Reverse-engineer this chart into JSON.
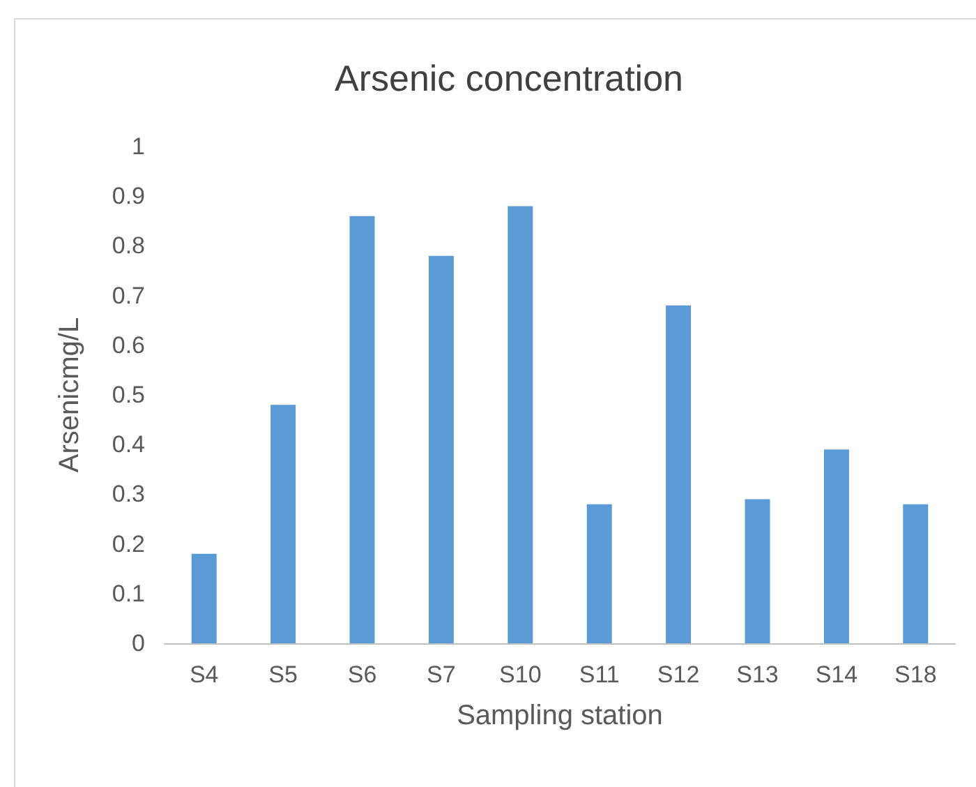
{
  "chart_data": {
    "type": "bar",
    "title": "Arsenic concentration",
    "xlabel": "Sampling station",
    "ylabel": "Arsenicmg/L",
    "categories": [
      "S4",
      "S5",
      "S6",
      "S7",
      "S10",
      "S11",
      "S12",
      "S13",
      "S14",
      "S18"
    ],
    "values": [
      0.18,
      0.48,
      0.86,
      0.78,
      0.88,
      0.28,
      0.68,
      0.29,
      0.39,
      0.28
    ],
    "color": "#5b9bd5",
    "ylim": [
      0,
      1
    ],
    "yticks": [
      0,
      0.1,
      0.2,
      0.3,
      0.4,
      0.5,
      0.6,
      0.7,
      0.8,
      0.9,
      1
    ],
    "grid": false
  }
}
